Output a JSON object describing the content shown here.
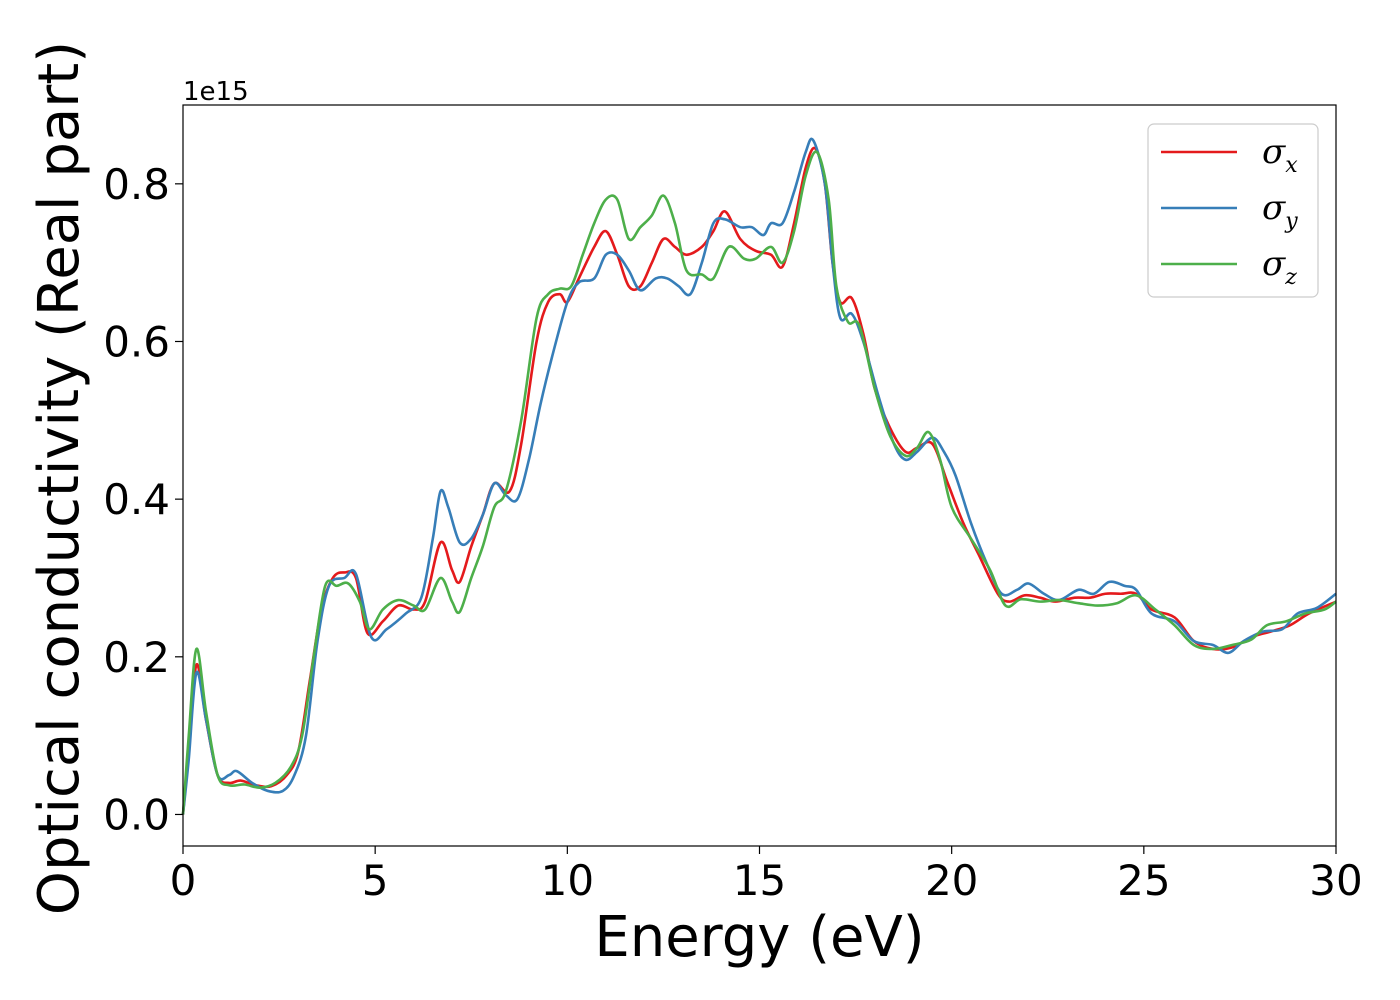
{
  "chart_data": {
    "type": "line",
    "title": "",
    "xlabel": "Energy (eV)",
    "ylabel": "Optical conductivity (Real part)",
    "y_offset_label": "1e15",
    "xlim": [
      0,
      30
    ],
    "ylim": [
      -0.04,
      0.9
    ],
    "x_ticks": [
      0,
      5,
      10,
      15,
      20,
      25,
      30
    ],
    "x_tick_labels": [
      "0",
      "5",
      "10",
      "15",
      "20",
      "25",
      "30"
    ],
    "y_ticks": [
      0.0,
      0.2,
      0.4,
      0.6,
      0.8
    ],
    "y_tick_labels": [
      "0.0",
      "0.2",
      "0.4",
      "0.6",
      "0.8"
    ],
    "grid": false,
    "legend_position": "top-right",
    "series": [
      {
        "name": "σ",
        "subscript": "x",
        "color": "#e41a1c",
        "points": [
          [
            0,
            0
          ],
          [
            0.15,
            0.08
          ],
          [
            0.35,
            0.19
          ],
          [
            0.6,
            0.12
          ],
          [
            0.9,
            0.05
          ],
          [
            1.2,
            0.04
          ],
          [
            1.5,
            0.043
          ],
          [
            1.9,
            0.037
          ],
          [
            2.3,
            0.036
          ],
          [
            2.7,
            0.05
          ],
          [
            3.0,
            0.08
          ],
          [
            3.3,
            0.17
          ],
          [
            3.6,
            0.26
          ],
          [
            3.9,
            0.3
          ],
          [
            4.2,
            0.307
          ],
          [
            4.5,
            0.3
          ],
          [
            4.8,
            0.23
          ],
          [
            5.2,
            0.245
          ],
          [
            5.6,
            0.265
          ],
          [
            6.0,
            0.26
          ],
          [
            6.3,
            0.27
          ],
          [
            6.7,
            0.345
          ],
          [
            7.0,
            0.31
          ],
          [
            7.2,
            0.295
          ],
          [
            7.5,
            0.34
          ],
          [
            7.8,
            0.38
          ],
          [
            8.1,
            0.42
          ],
          [
            8.5,
            0.41
          ],
          [
            8.8,
            0.47
          ],
          [
            9.2,
            0.6
          ],
          [
            9.5,
            0.65
          ],
          [
            9.8,
            0.66
          ],
          [
            10.0,
            0.65
          ],
          [
            10.3,
            0.68
          ],
          [
            10.7,
            0.72
          ],
          [
            11.0,
            0.74
          ],
          [
            11.3,
            0.71
          ],
          [
            11.6,
            0.67
          ],
          [
            11.9,
            0.67
          ],
          [
            12.2,
            0.7
          ],
          [
            12.5,
            0.73
          ],
          [
            12.8,
            0.72
          ],
          [
            13.1,
            0.71
          ],
          [
            13.5,
            0.72
          ],
          [
            13.8,
            0.74
          ],
          [
            14.1,
            0.765
          ],
          [
            14.5,
            0.73
          ],
          [
            14.9,
            0.715
          ],
          [
            15.3,
            0.71
          ],
          [
            15.6,
            0.695
          ],
          [
            15.9,
            0.75
          ],
          [
            16.2,
            0.82
          ],
          [
            16.45,
            0.845
          ],
          [
            16.7,
            0.8
          ],
          [
            16.9,
            0.7
          ],
          [
            17.1,
            0.65
          ],
          [
            17.4,
            0.655
          ],
          [
            17.7,
            0.61
          ],
          [
            18.0,
            0.54
          ],
          [
            18.4,
            0.49
          ],
          [
            18.8,
            0.46
          ],
          [
            19.1,
            0.465
          ],
          [
            19.5,
            0.47
          ],
          [
            19.9,
            0.42
          ],
          [
            20.3,
            0.37
          ],
          [
            20.7,
            0.33
          ],
          [
            21.2,
            0.28
          ],
          [
            21.5,
            0.27
          ],
          [
            21.9,
            0.278
          ],
          [
            22.3,
            0.275
          ],
          [
            22.7,
            0.27
          ],
          [
            23.2,
            0.275
          ],
          [
            23.6,
            0.275
          ],
          [
            24.0,
            0.28
          ],
          [
            24.4,
            0.28
          ],
          [
            24.8,
            0.28
          ],
          [
            25.2,
            0.26
          ],
          [
            25.8,
            0.25
          ],
          [
            26.3,
            0.22
          ],
          [
            26.8,
            0.21
          ],
          [
            27.3,
            0.212
          ],
          [
            27.8,
            0.225
          ],
          [
            28.3,
            0.232
          ],
          [
            28.8,
            0.24
          ],
          [
            29.3,
            0.255
          ],
          [
            30.0,
            0.27
          ]
        ]
      },
      {
        "name": "σ",
        "subscript": "y",
        "color": "#377eb8",
        "points": [
          [
            0,
            0
          ],
          [
            0.15,
            0.07
          ],
          [
            0.35,
            0.18
          ],
          [
            0.6,
            0.12
          ],
          [
            0.9,
            0.05
          ],
          [
            1.2,
            0.05
          ],
          [
            1.4,
            0.055
          ],
          [
            1.8,
            0.04
          ],
          [
            2.2,
            0.03
          ],
          [
            2.6,
            0.03
          ],
          [
            2.9,
            0.05
          ],
          [
            3.2,
            0.1
          ],
          [
            3.5,
            0.22
          ],
          [
            3.8,
            0.29
          ],
          [
            4.2,
            0.3
          ],
          [
            4.5,
            0.305
          ],
          [
            4.9,
            0.225
          ],
          [
            5.3,
            0.235
          ],
          [
            5.8,
            0.255
          ],
          [
            6.2,
            0.275
          ],
          [
            6.5,
            0.35
          ],
          [
            6.7,
            0.41
          ],
          [
            6.9,
            0.39
          ],
          [
            7.2,
            0.345
          ],
          [
            7.5,
            0.35
          ],
          [
            7.8,
            0.38
          ],
          [
            8.1,
            0.42
          ],
          [
            8.4,
            0.405
          ],
          [
            8.7,
            0.4
          ],
          [
            9.0,
            0.45
          ],
          [
            9.3,
            0.52
          ],
          [
            9.6,
            0.58
          ],
          [
            10.0,
            0.65
          ],
          [
            10.3,
            0.675
          ],
          [
            10.7,
            0.68
          ],
          [
            11.0,
            0.71
          ],
          [
            11.3,
            0.71
          ],
          [
            11.6,
            0.69
          ],
          [
            11.9,
            0.665
          ],
          [
            12.3,
            0.68
          ],
          [
            12.6,
            0.68
          ],
          [
            12.9,
            0.67
          ],
          [
            13.2,
            0.66
          ],
          [
            13.5,
            0.7
          ],
          [
            13.8,
            0.75
          ],
          [
            14.1,
            0.755
          ],
          [
            14.5,
            0.745
          ],
          [
            14.8,
            0.745
          ],
          [
            15.1,
            0.735
          ],
          [
            15.3,
            0.75
          ],
          [
            15.6,
            0.75
          ],
          [
            15.9,
            0.79
          ],
          [
            16.2,
            0.84
          ],
          [
            16.4,
            0.855
          ],
          [
            16.7,
            0.8
          ],
          [
            16.9,
            0.7
          ],
          [
            17.1,
            0.63
          ],
          [
            17.4,
            0.635
          ],
          [
            17.7,
            0.6
          ],
          [
            18.1,
            0.53
          ],
          [
            18.5,
            0.47
          ],
          [
            18.8,
            0.45
          ],
          [
            19.1,
            0.46
          ],
          [
            19.5,
            0.478
          ],
          [
            19.8,
            0.46
          ],
          [
            20.1,
            0.43
          ],
          [
            20.5,
            0.37
          ],
          [
            20.9,
            0.32
          ],
          [
            21.3,
            0.28
          ],
          [
            21.7,
            0.285
          ],
          [
            22.0,
            0.293
          ],
          [
            22.4,
            0.28
          ],
          [
            22.8,
            0.272
          ],
          [
            23.3,
            0.285
          ],
          [
            23.7,
            0.28
          ],
          [
            24.1,
            0.295
          ],
          [
            24.5,
            0.29
          ],
          [
            24.8,
            0.285
          ],
          [
            25.2,
            0.255
          ],
          [
            25.8,
            0.245
          ],
          [
            26.3,
            0.22
          ],
          [
            26.8,
            0.215
          ],
          [
            27.2,
            0.205
          ],
          [
            27.6,
            0.22
          ],
          [
            28.1,
            0.232
          ],
          [
            28.6,
            0.235
          ],
          [
            29.0,
            0.255
          ],
          [
            29.5,
            0.262
          ],
          [
            30.0,
            0.28
          ]
        ]
      },
      {
        "name": "σ",
        "subscript": "z",
        "color": "#4daf4a",
        "points": [
          [
            0,
            0
          ],
          [
            0.15,
            0.1
          ],
          [
            0.35,
            0.21
          ],
          [
            0.6,
            0.13
          ],
          [
            0.9,
            0.05
          ],
          [
            1.2,
            0.037
          ],
          [
            1.6,
            0.038
          ],
          [
            2.0,
            0.034
          ],
          [
            2.4,
            0.04
          ],
          [
            2.8,
            0.06
          ],
          [
            3.1,
            0.1
          ],
          [
            3.4,
            0.2
          ],
          [
            3.7,
            0.29
          ],
          [
            4.0,
            0.29
          ],
          [
            4.3,
            0.293
          ],
          [
            4.6,
            0.27
          ],
          [
            4.85,
            0.235
          ],
          [
            5.2,
            0.26
          ],
          [
            5.6,
            0.272
          ],
          [
            6.0,
            0.265
          ],
          [
            6.3,
            0.26
          ],
          [
            6.7,
            0.3
          ],
          [
            7.0,
            0.27
          ],
          [
            7.2,
            0.257
          ],
          [
            7.5,
            0.3
          ],
          [
            7.8,
            0.34
          ],
          [
            8.1,
            0.39
          ],
          [
            8.4,
            0.41
          ],
          [
            8.8,
            0.5
          ],
          [
            9.2,
            0.63
          ],
          [
            9.5,
            0.66
          ],
          [
            9.8,
            0.667
          ],
          [
            10.1,
            0.67
          ],
          [
            10.4,
            0.71
          ],
          [
            10.7,
            0.75
          ],
          [
            11.0,
            0.78
          ],
          [
            11.3,
            0.78
          ],
          [
            11.6,
            0.73
          ],
          [
            11.9,
            0.745
          ],
          [
            12.2,
            0.76
          ],
          [
            12.5,
            0.785
          ],
          [
            12.8,
            0.75
          ],
          [
            13.1,
            0.69
          ],
          [
            13.5,
            0.685
          ],
          [
            13.8,
            0.68
          ],
          [
            14.2,
            0.72
          ],
          [
            14.6,
            0.705
          ],
          [
            14.9,
            0.705
          ],
          [
            15.3,
            0.72
          ],
          [
            15.6,
            0.7
          ],
          [
            15.9,
            0.74
          ],
          [
            16.2,
            0.81
          ],
          [
            16.5,
            0.84
          ],
          [
            16.8,
            0.78
          ],
          [
            17.0,
            0.67
          ],
          [
            17.3,
            0.625
          ],
          [
            17.6,
            0.62
          ],
          [
            18.0,
            0.54
          ],
          [
            18.4,
            0.48
          ],
          [
            18.8,
            0.455
          ],
          [
            19.1,
            0.465
          ],
          [
            19.4,
            0.485
          ],
          [
            19.7,
            0.45
          ],
          [
            20.0,
            0.39
          ],
          [
            20.5,
            0.35
          ],
          [
            21.0,
            0.31
          ],
          [
            21.4,
            0.265
          ],
          [
            21.8,
            0.273
          ],
          [
            22.3,
            0.27
          ],
          [
            22.8,
            0.272
          ],
          [
            23.3,
            0.268
          ],
          [
            23.8,
            0.265
          ],
          [
            24.3,
            0.268
          ],
          [
            24.8,
            0.278
          ],
          [
            25.3,
            0.26
          ],
          [
            25.8,
            0.24
          ],
          [
            26.3,
            0.215
          ],
          [
            26.8,
            0.21
          ],
          [
            27.3,
            0.215
          ],
          [
            27.8,
            0.222
          ],
          [
            28.2,
            0.24
          ],
          [
            28.7,
            0.245
          ],
          [
            29.2,
            0.255
          ],
          [
            29.7,
            0.26
          ],
          [
            30.0,
            0.27
          ]
        ]
      }
    ]
  }
}
